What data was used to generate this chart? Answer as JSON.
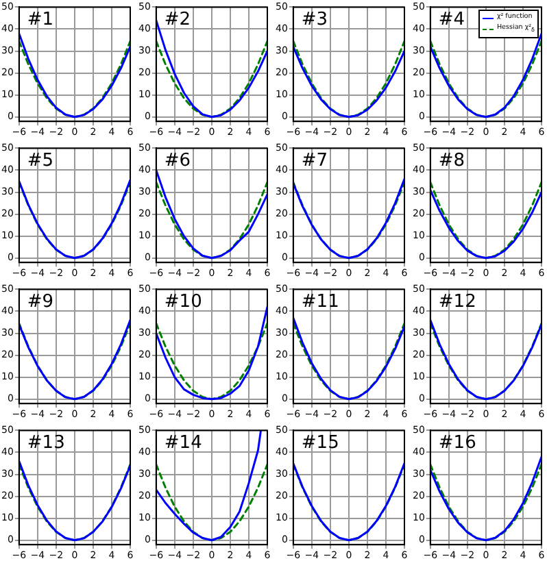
{
  "chart_data": [
    {
      "type": "line",
      "title": "#1",
      "x": [
        -6,
        -5,
        -4,
        -3,
        -2,
        -1,
        0,
        1,
        2,
        3,
        4,
        5,
        6
      ],
      "xlim": [
        -6,
        6
      ],
      "xticks": [
        -6,
        -4,
        -2,
        0,
        2,
        4,
        6
      ],
      "ylim": [
        -2,
        50
      ],
      "yticks": [
        0,
        10,
        20,
        30,
        40,
        50
      ],
      "grid": true,
      "series": [
        {
          "color": "#0000ff",
          "line_style": "solid",
          "values": [
            38,
            26.4,
            16.9,
            9.5,
            4.2,
            1.1,
            0,
            0.9,
            3.6,
            8,
            14.2,
            22.2,
            32
          ]
        },
        {
          "color": "#008000",
          "line_style": "dashed",
          "values": [
            34.5,
            24,
            15.3,
            8.6,
            3.8,
            1,
            0,
            1,
            3.8,
            8.6,
            15.3,
            24,
            34.5
          ]
        }
      ]
    },
    {
      "type": "line",
      "title": "#2",
      "x": [
        -6,
        -5,
        -4,
        -3,
        -2,
        -1,
        0,
        1,
        2,
        3,
        4,
        5,
        6
      ],
      "xlim": [
        -6,
        6
      ],
      "xticks": [
        -6,
        -4,
        -2,
        0,
        2,
        4,
        6
      ],
      "ylim": [
        -2,
        50
      ],
      "yticks": [
        0,
        10,
        20,
        30,
        40,
        50
      ],
      "grid": true,
      "series": [
        {
          "color": "#0000ff",
          "line_style": "solid",
          "values": [
            44,
            30.6,
            19.6,
            11,
            4.9,
            1.2,
            0,
            0.8,
            3.3,
            7.5,
            13.3,
            20.8,
            30
          ]
        },
        {
          "color": "#008000",
          "line_style": "dashed",
          "values": [
            34.5,
            24,
            15.3,
            8.6,
            3.8,
            1,
            0,
            1,
            3.8,
            8.6,
            15.3,
            24,
            34.5
          ]
        }
      ]
    },
    {
      "type": "line",
      "title": "#3",
      "x": [
        -6,
        -5,
        -4,
        -3,
        -2,
        -1,
        0,
        1,
        2,
        3,
        4,
        5,
        6
      ],
      "xlim": [
        -6,
        6
      ],
      "xticks": [
        -6,
        -4,
        -2,
        0,
        2,
        4,
        6
      ],
      "ylim": [
        -2,
        50
      ],
      "yticks": [
        0,
        10,
        20,
        30,
        40,
        50
      ],
      "grid": true,
      "series": [
        {
          "color": "#0000ff",
          "line_style": "solid",
          "values": [
            32,
            22.2,
            14.2,
            8,
            3.6,
            0.9,
            0,
            0.8,
            3.3,
            7.5,
            13.3,
            20.8,
            30
          ]
        },
        {
          "color": "#008000",
          "line_style": "dashed",
          "values": [
            34.5,
            24,
            15.3,
            8.6,
            3.8,
            1,
            0,
            1,
            3.8,
            8.6,
            15.3,
            24,
            34.5
          ]
        }
      ]
    },
    {
      "type": "line",
      "title": "#4",
      "legend": "top right",
      "x": [
        -6,
        -5,
        -4,
        -3,
        -2,
        -1,
        0,
        1,
        2,
        3,
        4,
        5,
        6
      ],
      "xlim": [
        -6,
        6
      ],
      "xticks": [
        -6,
        -4,
        -2,
        0,
        2,
        4,
        6
      ],
      "ylim": [
        -2,
        50
      ],
      "yticks": [
        0,
        10,
        20,
        30,
        40,
        50
      ],
      "grid": true,
      "series": [
        {
          "name": "χ² function",
          "color": "#0000ff",
          "line_style": "solid",
          "values": [
            32,
            22.2,
            14.2,
            8,
            3.6,
            0.9,
            0,
            1.1,
            4.2,
            9.5,
            16.9,
            26.4,
            38
          ]
        },
        {
          "name": "Hessian χ²$_{δ}$",
          "color": "#008000",
          "line_style": "dashed",
          "values": [
            34.5,
            24,
            15.3,
            8.6,
            3.8,
            1,
            0,
            1,
            3.8,
            8.6,
            15.3,
            24,
            34.5
          ]
        }
      ]
    },
    {
      "type": "line",
      "title": "#5",
      "x": [
        -6,
        -5,
        -4,
        -3,
        -2,
        -1,
        0,
        1,
        2,
        3,
        4,
        5,
        6
      ],
      "xlim": [
        -6,
        6
      ],
      "xticks": [
        -6,
        -4,
        -2,
        0,
        2,
        4,
        6
      ],
      "ylim": [
        -2,
        50
      ],
      "yticks": [
        0,
        10,
        20,
        30,
        40,
        50
      ],
      "grid": true,
      "series": [
        {
          "color": "#0000ff",
          "line_style": "solid",
          "values": [
            35,
            24.3,
            15.6,
            8.8,
            3.9,
            1,
            0,
            1,
            3.9,
            8.9,
            15.8,
            24.7,
            35.5
          ]
        },
        {
          "color": "#008000",
          "line_style": "dashed",
          "values": [
            34.5,
            24,
            15.3,
            8.6,
            3.8,
            1,
            0,
            1,
            3.8,
            8.6,
            15.3,
            24,
            34.5
          ]
        }
      ]
    },
    {
      "type": "line",
      "title": "#6",
      "x": [
        -6,
        -5,
        -4,
        -3,
        -2,
        -1,
        0,
        1,
        2,
        3,
        4,
        5,
        6
      ],
      "xlim": [
        -6,
        6
      ],
      "xticks": [
        -6,
        -4,
        -2,
        0,
        2,
        4,
        6
      ],
      "ylim": [
        -2,
        50
      ],
      "yticks": [
        0,
        10,
        20,
        30,
        40,
        50
      ],
      "grid": true,
      "series": [
        {
          "color": "#0000ff",
          "line_style": "solid",
          "values": [
            40,
            27.8,
            17.8,
            10,
            4.4,
            1.1,
            0,
            1,
            3.5,
            8,
            12,
            20,
            29
          ]
        },
        {
          "color": "#008000",
          "line_style": "dashed",
          "values": [
            34.5,
            24,
            15.3,
            8.6,
            3.8,
            1,
            0,
            1,
            3.8,
            8.6,
            15.3,
            24,
            34.5
          ]
        }
      ]
    },
    {
      "type": "line",
      "title": "#7",
      "x": [
        -6,
        -5,
        -4,
        -3,
        -2,
        -1,
        0,
        1,
        2,
        3,
        4,
        5,
        6
      ],
      "xlim": [
        -6,
        6
      ],
      "xticks": [
        -6,
        -4,
        -2,
        0,
        2,
        4,
        6
      ],
      "ylim": [
        -2,
        50
      ],
      "yticks": [
        0,
        10,
        20,
        30,
        40,
        50
      ],
      "grid": true,
      "series": [
        {
          "color": "#0000ff",
          "line_style": "solid",
          "values": [
            34,
            23.6,
            15.1,
            8.5,
            3.8,
            0.9,
            0,
            1,
            4,
            9,
            16,
            25,
            36
          ]
        },
        {
          "color": "#008000",
          "line_style": "dashed",
          "values": [
            34.5,
            24,
            15.3,
            8.6,
            3.8,
            1,
            0,
            1,
            3.8,
            8.6,
            15.3,
            24,
            34.5
          ]
        }
      ]
    },
    {
      "type": "line",
      "title": "#8",
      "x": [
        -6,
        -5,
        -4,
        -3,
        -2,
        -1,
        0,
        1,
        2,
        3,
        4,
        5,
        6
      ],
      "xlim": [
        -6,
        6
      ],
      "xticks": [
        -6,
        -4,
        -2,
        0,
        2,
        4,
        6
      ],
      "ylim": [
        -2,
        50
      ],
      "yticks": [
        0,
        10,
        20,
        30,
        40,
        50
      ],
      "grid": true,
      "series": [
        {
          "color": "#0000ff",
          "line_style": "solid",
          "values": [
            31,
            21.5,
            13.8,
            7.8,
            3.4,
            0.9,
            0,
            0.8,
            3.3,
            7.5,
            13.3,
            20.8,
            30
          ]
        },
        {
          "color": "#008000",
          "line_style": "dashed",
          "values": [
            34.5,
            24,
            15.3,
            8.6,
            3.8,
            1,
            0,
            1,
            3.8,
            8.6,
            15.3,
            24,
            34.5
          ]
        }
      ]
    },
    {
      "type": "line",
      "title": "#9",
      "x": [
        -6,
        -5,
        -4,
        -3,
        -2,
        -1,
        0,
        1,
        2,
        3,
        4,
        5,
        6
      ],
      "xlim": [
        -6,
        6
      ],
      "xticks": [
        -6,
        -4,
        -2,
        0,
        2,
        4,
        6
      ],
      "ylim": [
        -2,
        50
      ],
      "yticks": [
        0,
        10,
        20,
        30,
        40,
        50
      ],
      "grid": true,
      "series": [
        {
          "color": "#0000ff",
          "line_style": "solid",
          "values": [
            34,
            23.6,
            15.1,
            8.5,
            3.8,
            0.9,
            0,
            1,
            4,
            9,
            16,
            25,
            36
          ]
        },
        {
          "color": "#008000",
          "line_style": "dashed",
          "values": [
            34.5,
            24,
            15.3,
            8.6,
            3.8,
            1,
            0,
            1,
            3.8,
            8.6,
            15.3,
            24,
            34.5
          ]
        }
      ]
    },
    {
      "type": "line",
      "title": "#10",
      "x": [
        -6,
        -5,
        -4,
        -3,
        -2,
        -1,
        0,
        1,
        2,
        3,
        4,
        5,
        6
      ],
      "xlim": [
        -6,
        6
      ],
      "xticks": [
        -6,
        -4,
        -2,
        0,
        2,
        4,
        6
      ],
      "ylim": [
        -2,
        50
      ],
      "yticks": [
        0,
        10,
        20,
        30,
        40,
        50
      ],
      "grid": true,
      "series": [
        {
          "color": "#0000ff",
          "line_style": "solid",
          "values": [
            30,
            19,
            10,
            4.5,
            2,
            0.5,
            0,
            0.5,
            2.5,
            6,
            13,
            24,
            42
          ]
        },
        {
          "color": "#008000",
          "line_style": "dashed",
          "values": [
            34.5,
            24,
            15.3,
            8.6,
            3.8,
            1,
            0,
            1,
            3.8,
            8.6,
            15.3,
            24,
            34.5
          ]
        }
      ]
    },
    {
      "type": "line",
      "title": "#11",
      "x": [
        -6,
        -5,
        -4,
        -3,
        -2,
        -1,
        0,
        1,
        2,
        3,
        4,
        5,
        6
      ],
      "xlim": [
        -6,
        6
      ],
      "xticks": [
        -6,
        -4,
        -2,
        0,
        2,
        4,
        6
      ],
      "ylim": [
        -2,
        50
      ],
      "yticks": [
        0,
        10,
        20,
        30,
        40,
        50
      ],
      "grid": true,
      "series": [
        {
          "color": "#0000ff",
          "line_style": "solid",
          "values": [
            37,
            25.7,
            16.4,
            9.3,
            4.1,
            1,
            0,
            0.9,
            3.7,
            8.3,
            14.7,
            22.9,
            33
          ]
        },
        {
          "color": "#008000",
          "line_style": "dashed",
          "values": [
            34.5,
            24,
            15.3,
            8.6,
            3.8,
            1,
            0,
            1,
            3.8,
            8.6,
            15.3,
            24,
            34.5
          ]
        }
      ]
    },
    {
      "type": "line",
      "title": "#12",
      "x": [
        -6,
        -5,
        -4,
        -3,
        -2,
        -1,
        0,
        1,
        2,
        3,
        4,
        5,
        6
      ],
      "xlim": [
        -6,
        6
      ],
      "xticks": [
        -6,
        -4,
        -2,
        0,
        2,
        4,
        6
      ],
      "ylim": [
        -2,
        50
      ],
      "yticks": [
        0,
        10,
        20,
        30,
        40,
        50
      ],
      "grid": true,
      "series": [
        {
          "color": "#0000ff",
          "line_style": "solid",
          "values": [
            36,
            25,
            16,
            9,
            4,
            1,
            0,
            0.9,
            3.8,
            8.5,
            15.1,
            23.6,
            34
          ]
        },
        {
          "color": "#008000",
          "line_style": "dashed",
          "values": [
            34.5,
            24,
            15.3,
            8.6,
            3.8,
            1,
            0,
            1,
            3.8,
            8.6,
            15.3,
            24,
            34.5
          ]
        }
      ]
    },
    {
      "type": "line",
      "title": "#13",
      "x": [
        -6,
        -5,
        -4,
        -3,
        -2,
        -1,
        0,
        1,
        2,
        3,
        4,
        5,
        6
      ],
      "xlim": [
        -6,
        6
      ],
      "xticks": [
        -6,
        -4,
        -2,
        0,
        2,
        4,
        6
      ],
      "ylim": [
        -2,
        50
      ],
      "yticks": [
        0,
        10,
        20,
        30,
        40,
        50
      ],
      "grid": true,
      "series": [
        {
          "color": "#0000ff",
          "line_style": "solid",
          "values": [
            36,
            25,
            16,
            9,
            4,
            1,
            0,
            0.9,
            3.8,
            8.5,
            15.1,
            23.6,
            34
          ]
        },
        {
          "color": "#008000",
          "line_style": "dashed",
          "values": [
            34.5,
            24,
            15.3,
            8.6,
            3.8,
            1,
            0,
            1,
            3.8,
            8.6,
            15.3,
            24,
            34.5
          ]
        }
      ]
    },
    {
      "type": "line",
      "title": "#14",
      "x": [
        -6,
        -5,
        -4,
        -3,
        -2,
        -1,
        0,
        1,
        2,
        3,
        4,
        5,
        6
      ],
      "xlim": [
        -6,
        6
      ],
      "xticks": [
        -6,
        -4,
        -2,
        0,
        2,
        4,
        6
      ],
      "ylim": [
        -2,
        50
      ],
      "yticks": [
        0,
        10,
        20,
        30,
        40,
        50
      ],
      "grid": true,
      "series": [
        {
          "color": "#0000ff",
          "line_style": "solid",
          "x": [
            -6,
            -5,
            -4,
            -3,
            -2,
            -1,
            0,
            1,
            2,
            3,
            4,
            5,
            5.3
          ],
          "values": [
            23,
            17,
            12,
            7.5,
            3.5,
            1,
            0,
            1.5,
            6,
            13,
            26,
            41,
            50
          ]
        },
        {
          "color": "#008000",
          "line_style": "dashed",
          "values": [
            34.5,
            24,
            15.3,
            8.6,
            3.8,
            1,
            0,
            1,
            3.8,
            8.6,
            15.3,
            24,
            34.5
          ]
        }
      ]
    },
    {
      "type": "line",
      "title": "#15",
      "x": [
        -6,
        -5,
        -4,
        -3,
        -2,
        -1,
        0,
        1,
        2,
        3,
        4,
        5,
        6
      ],
      "xlim": [
        -6,
        6
      ],
      "xticks": [
        -6,
        -4,
        -2,
        0,
        2,
        4,
        6
      ],
      "ylim": [
        -2,
        50
      ],
      "yticks": [
        0,
        10,
        20,
        30,
        40,
        50
      ],
      "grid": true,
      "series": [
        {
          "color": "#0000ff",
          "line_style": "solid",
          "values": [
            35,
            24.3,
            15.6,
            8.8,
            3.9,
            1,
            0,
            1,
            3.9,
            8.8,
            15.6,
            24.3,
            35
          ]
        },
        {
          "color": "#008000",
          "line_style": "dashed",
          "values": [
            34.5,
            24,
            15.3,
            8.6,
            3.8,
            1,
            0,
            1,
            3.8,
            8.6,
            15.3,
            24,
            34.5
          ]
        }
      ]
    },
    {
      "type": "line",
      "title": "#16",
      "x": [
        -6,
        -5,
        -4,
        -3,
        -2,
        -1,
        0,
        1,
        2,
        3,
        4,
        5,
        6
      ],
      "xlim": [
        -6,
        6
      ],
      "xticks": [
        -6,
        -4,
        -2,
        0,
        2,
        4,
        6
      ],
      "ylim": [
        -2,
        50
      ],
      "yticks": [
        0,
        10,
        20,
        30,
        40,
        50
      ],
      "grid": true,
      "series": [
        {
          "color": "#0000ff",
          "line_style": "solid",
          "values": [
            32,
            22.2,
            14.2,
            8,
            3.6,
            0.9,
            0,
            1.1,
            4.2,
            9.5,
            16.9,
            26.4,
            38
          ]
        },
        {
          "color": "#008000",
          "line_style": "dashed",
          "values": [
            34.5,
            24,
            15.3,
            8.6,
            3.8,
            1,
            0,
            1,
            3.8,
            8.6,
            15.3,
            24,
            34.5
          ]
        }
      ]
    }
  ]
}
